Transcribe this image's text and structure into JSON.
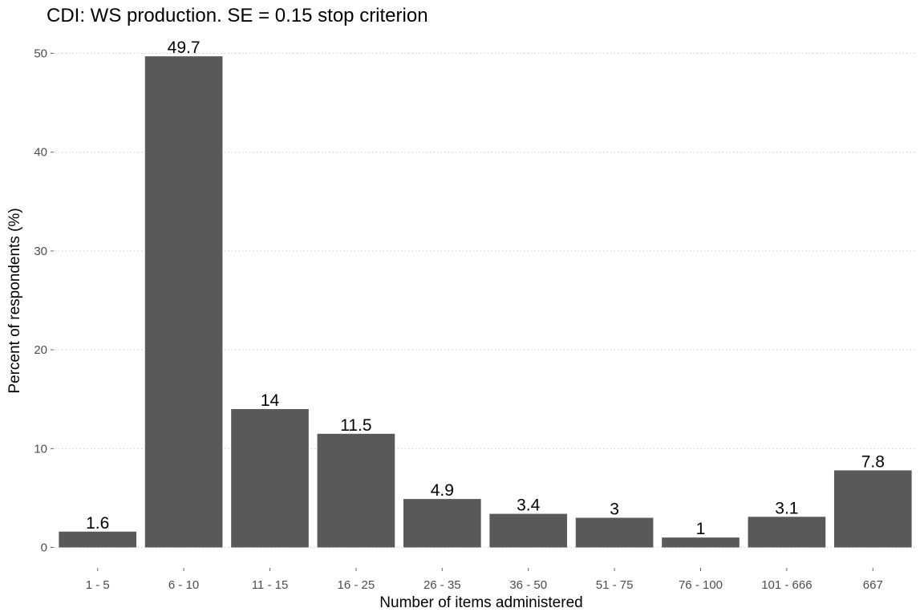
{
  "chart_data": {
    "type": "bar",
    "title": "CDI: WS production. SE = 0.15 stop criterion",
    "xlabel": "Number of items administered",
    "ylabel": "Percent of respondents (%)",
    "categories": [
      "1 - 5",
      "6 - 10",
      "11 - 15",
      "16 - 25",
      "26 - 35",
      "36 - 50",
      "51 - 75",
      "76 - 100",
      "101 - 666",
      "667"
    ],
    "values": [
      1.6,
      49.7,
      14,
      11.5,
      4.9,
      3.4,
      3,
      1,
      3.1,
      7.8
    ],
    "value_labels": [
      "1.6",
      "49.7",
      "14",
      "11.5",
      "4.9",
      "3.4",
      "3",
      "1",
      "3.1",
      "7.8"
    ],
    "ylim": [
      0,
      52
    ],
    "yticks": [
      0,
      10,
      20,
      30,
      40,
      50
    ],
    "grid": "horizontal dotted",
    "bar_color": "#595959"
  }
}
